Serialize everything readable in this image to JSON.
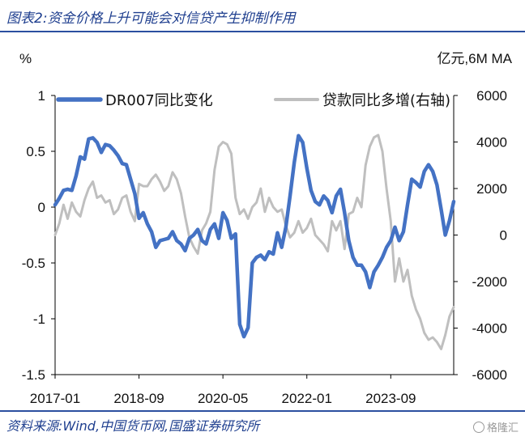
{
  "figure": {
    "title": "图表2:资金价格上升可能会对信贷产生抑制作用",
    "source": "资料来源:Wind,中国货币网,国盛证券研究所",
    "watermark": "格隆汇"
  },
  "chart_data": {
    "type": "line",
    "left_unit": "%",
    "right_unit": "亿元,6M MA",
    "x_tick_labels": [
      "2017-01",
      "2018-09",
      "2020-05",
      "2022-01",
      "2023-09"
    ],
    "x_range": [
      "2017-01",
      "2024-12"
    ],
    "y_left": {
      "ticks": [
        "1",
        "0.5",
        "0",
        "-0.5",
        "-1",
        "-1.5"
      ],
      "ylim": [
        -1.5,
        1
      ]
    },
    "y_right": {
      "ticks": [
        "6000",
        "4000",
        "2000",
        "0",
        "-2000",
        "-4000",
        "-6000"
      ],
      "ylim": [
        -6000,
        6000
      ]
    },
    "grid": false,
    "legend_position": "top",
    "series": [
      {
        "name": "DR007同比变化",
        "axis": "left",
        "color": "#4472C4",
        "points": [
          [
            "2017-01",
            0.02
          ],
          [
            "2017-02",
            0.08
          ],
          [
            "2017-03",
            0.15
          ],
          [
            "2017-04",
            0.16
          ],
          [
            "2017-05",
            0.15
          ],
          [
            "2017-06",
            0.28
          ],
          [
            "2017-07",
            0.45
          ],
          [
            "2017-08",
            0.43
          ],
          [
            "2017-09",
            0.61
          ],
          [
            "2017-10",
            0.62
          ],
          [
            "2017-11",
            0.58
          ],
          [
            "2017-12",
            0.49
          ],
          [
            "2018-01",
            0.56
          ],
          [
            "2018-02",
            0.55
          ],
          [
            "2018-03",
            0.51
          ],
          [
            "2018-04",
            0.46
          ],
          [
            "2018-05",
            0.39
          ],
          [
            "2018-06",
            0.38
          ],
          [
            "2018-07",
            0.25
          ],
          [
            "2018-08",
            0.12
          ],
          [
            "2018-09",
            -0.1
          ],
          [
            "2018-10",
            -0.05
          ],
          [
            "2018-11",
            -0.15
          ],
          [
            "2018-12",
            -0.22
          ],
          [
            "2019-01",
            -0.36
          ],
          [
            "2019-02",
            -0.3
          ],
          [
            "2019-03",
            -0.29
          ],
          [
            "2019-04",
            -0.28
          ],
          [
            "2019-05",
            -0.22
          ],
          [
            "2019-06",
            -0.3
          ],
          [
            "2019-07",
            -0.33
          ],
          [
            "2019-08",
            -0.39
          ],
          [
            "2019-09",
            -0.28
          ],
          [
            "2019-10",
            -0.25
          ],
          [
            "2019-11",
            -0.2
          ],
          [
            "2019-12",
            -0.3
          ],
          [
            "2020-01",
            -0.33
          ],
          [
            "2020-02",
            -0.2
          ],
          [
            "2020-03",
            -0.15
          ],
          [
            "2020-04",
            -0.28
          ],
          [
            "2020-05",
            -0.05
          ],
          [
            "2020-06",
            -0.12
          ],
          [
            "2020-07",
            -0.28
          ],
          [
            "2020-08",
            -0.24
          ],
          [
            "2020-09",
            -1.05
          ],
          [
            "2020-10",
            -1.16
          ],
          [
            "2020-11",
            -1.08
          ],
          [
            "2020-12",
            -0.5
          ],
          [
            "2021-01",
            -0.45
          ],
          [
            "2021-02",
            -0.43
          ],
          [
            "2021-03",
            -0.47
          ],
          [
            "2021-04",
            -0.4
          ],
          [
            "2021-05",
            -0.42
          ],
          [
            "2021-06",
            -0.23
          ],
          [
            "2021-07",
            -0.36
          ],
          [
            "2021-08",
            -0.18
          ],
          [
            "2021-09",
            0.1
          ],
          [
            "2021-10",
            0.4
          ],
          [
            "2021-11",
            0.64
          ],
          [
            "2021-12",
            0.58
          ],
          [
            "2022-01",
            0.35
          ],
          [
            "2022-02",
            0.15
          ],
          [
            "2022-03",
            0.05
          ],
          [
            "2022-04",
            0.02
          ],
          [
            "2022-05",
            0.1
          ],
          [
            "2022-06",
            0.06
          ],
          [
            "2022-07",
            -0.05
          ],
          [
            "2022-08",
            0.1
          ],
          [
            "2022-09",
            0.16
          ],
          [
            "2022-10",
            -0.05
          ],
          [
            "2022-11",
            -0.3
          ],
          [
            "2022-12",
            -0.45
          ],
          [
            "2023-01",
            -0.52
          ],
          [
            "2023-02",
            -0.52
          ],
          [
            "2023-03",
            -0.58
          ],
          [
            "2023-04",
            -0.72
          ],
          [
            "2023-05",
            -0.58
          ],
          [
            "2023-06",
            -0.52
          ],
          [
            "2023-07",
            -0.45
          ],
          [
            "2023-08",
            -0.36
          ],
          [
            "2023-09",
            -0.3
          ],
          [
            "2023-10",
            -0.18
          ],
          [
            "2023-11",
            -0.3
          ],
          [
            "2023-12",
            -0.22
          ],
          [
            "2024-01",
            0.02
          ],
          [
            "2024-02",
            0.25
          ],
          [
            "2024-03",
            0.22
          ],
          [
            "2024-04",
            0.18
          ],
          [
            "2024-05",
            0.32
          ],
          [
            "2024-06",
            0.38
          ],
          [
            "2024-07",
            0.32
          ],
          [
            "2024-08",
            0.2
          ],
          [
            "2024-09",
            -0.02
          ],
          [
            "2024-10",
            -0.25
          ],
          [
            "2024-11",
            -0.12
          ],
          [
            "2024-12",
            0.05
          ]
        ]
      },
      {
        "name": "贷款同比多增(右轴)",
        "axis": "right",
        "color": "#BFBFBF",
        "points": [
          [
            "2017-01",
            0
          ],
          [
            "2017-02",
            500
          ],
          [
            "2017-03",
            1300
          ],
          [
            "2017-04",
            700
          ],
          [
            "2017-05",
            1400
          ],
          [
            "2017-06",
            1000
          ],
          [
            "2017-07",
            800
          ],
          [
            "2017-08",
            1500
          ],
          [
            "2017-09",
            2000
          ],
          [
            "2017-10",
            2300
          ],
          [
            "2017-11",
            1600
          ],
          [
            "2017-12",
            1700
          ],
          [
            "2018-01",
            1400
          ],
          [
            "2018-02",
            1500
          ],
          [
            "2018-03",
            900
          ],
          [
            "2018-04",
            1100
          ],
          [
            "2018-05",
            1600
          ],
          [
            "2018-06",
            1700
          ],
          [
            "2018-07",
            1000
          ],
          [
            "2018-08",
            600
          ],
          [
            "2018-09",
            2200
          ],
          [
            "2018-10",
            2100
          ],
          [
            "2018-11",
            2100
          ],
          [
            "2018-12",
            2400
          ],
          [
            "2019-01",
            2600
          ],
          [
            "2019-02",
            2300
          ],
          [
            "2019-03",
            1900
          ],
          [
            "2019-04",
            2100
          ],
          [
            "2019-05",
            2700
          ],
          [
            "2019-06",
            2400
          ],
          [
            "2019-07",
            1800
          ],
          [
            "2019-08",
            800
          ],
          [
            "2019-09",
            -100
          ],
          [
            "2019-10",
            -500
          ],
          [
            "2019-11",
            -800
          ],
          [
            "2019-12",
            200
          ],
          [
            "2020-01",
            500
          ],
          [
            "2020-02",
            1000
          ],
          [
            "2020-03",
            2800
          ],
          [
            "2020-04",
            3800
          ],
          [
            "2020-05",
            4000
          ],
          [
            "2020-06",
            3900
          ],
          [
            "2020-07",
            3500
          ],
          [
            "2020-08",
            1600
          ],
          [
            "2020-09",
            900
          ],
          [
            "2020-10",
            1100
          ],
          [
            "2020-11",
            700
          ],
          [
            "2020-12",
            1200
          ],
          [
            "2021-01",
            1400
          ],
          [
            "2021-02",
            2000
          ],
          [
            "2021-03",
            1000
          ],
          [
            "2021-04",
            1600
          ],
          [
            "2021-05",
            1200
          ],
          [
            "2021-06",
            1000
          ],
          [
            "2021-07",
            1100
          ],
          [
            "2021-08",
            400
          ],
          [
            "2021-09",
            -100
          ],
          [
            "2021-10",
            100
          ],
          [
            "2021-11",
            600
          ],
          [
            "2021-12",
            100
          ],
          [
            "2022-01",
            300
          ],
          [
            "2022-02",
            700
          ],
          [
            "2022-03",
            0
          ],
          [
            "2022-04",
            -200
          ],
          [
            "2022-05",
            -400
          ],
          [
            "2022-06",
            -700
          ],
          [
            "2022-07",
            600
          ],
          [
            "2022-08",
            200
          ],
          [
            "2022-09",
            600
          ],
          [
            "2022-10",
            -600
          ],
          [
            "2022-11",
            900
          ],
          [
            "2022-12",
            1000
          ],
          [
            "2023-01",
            1600
          ],
          [
            "2023-02",
            1200
          ],
          [
            "2023-03",
            3000
          ],
          [
            "2023-04",
            3800
          ],
          [
            "2023-05",
            4200
          ],
          [
            "2023-06",
            4300
          ],
          [
            "2023-07",
            3600
          ],
          [
            "2023-08",
            2000
          ],
          [
            "2023-09",
            600
          ],
          [
            "2023-10",
            -2000
          ],
          [
            "2023-11",
            -1000
          ],
          [
            "2023-12",
            -2000
          ],
          [
            "2024-01",
            -1500
          ],
          [
            "2024-02",
            -2600
          ],
          [
            "2024-03",
            -3200
          ],
          [
            "2024-04",
            -3600
          ],
          [
            "2024-05",
            -4200
          ],
          [
            "2024-06",
            -4500
          ],
          [
            "2024-07",
            -4400
          ],
          [
            "2024-08",
            -4600
          ],
          [
            "2024-09",
            -4900
          ],
          [
            "2024-10",
            -4300
          ],
          [
            "2024-11",
            -3500
          ],
          [
            "2024-12",
            -3100
          ]
        ]
      }
    ]
  }
}
